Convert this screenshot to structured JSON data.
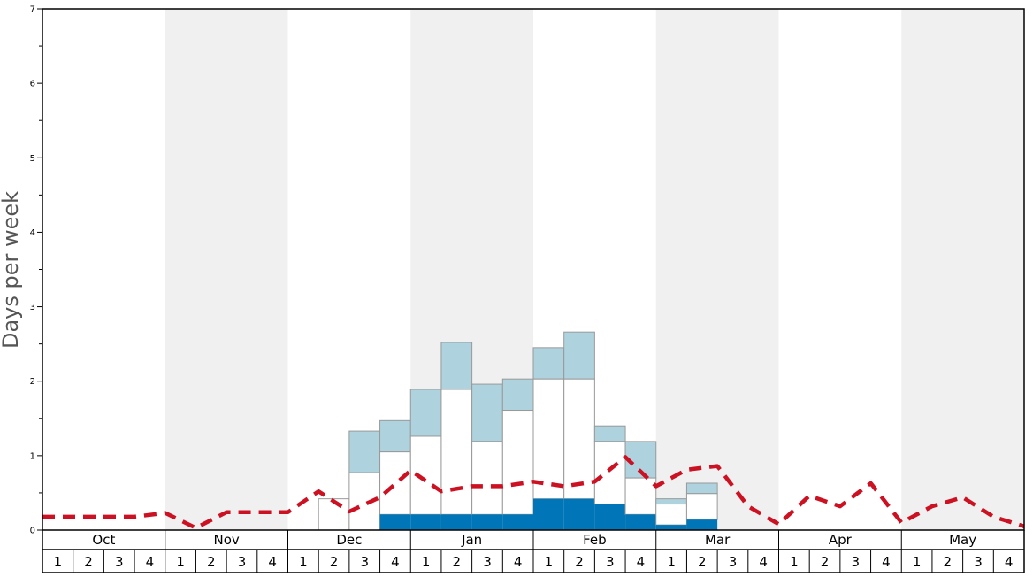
{
  "chart_data": {
    "type": "bar",
    "ylabel": "Days per week",
    "ylim": [
      0,
      7
    ],
    "y_major_ticks": [
      "0",
      "1",
      "2",
      "3",
      "4",
      "5",
      "6",
      "7"
    ],
    "months": [
      "Oct",
      "Nov",
      "Dec",
      "Jan",
      "Feb",
      "Mar",
      "Apr",
      "May"
    ],
    "weeks": [
      "1",
      "2",
      "3",
      "4"
    ],
    "month_shading": [
      "white",
      "grey",
      "white",
      "grey",
      "white",
      "grey",
      "white",
      "grey"
    ],
    "colors": {
      "dark": "#0076b8",
      "light": "#aed3df",
      "mid": "#ffffff",
      "line": "#cc1122",
      "shade": "#f0f0f0",
      "bar_stroke": "#999999"
    },
    "stacked_bars": [
      {
        "month": "Dec",
        "week": 2,
        "dark": 0,
        "white_top": 0.42,
        "total": 0.42
      },
      {
        "month": "Dec",
        "week": 3,
        "dark": 0,
        "white_top": 0.77,
        "total": 1.33
      },
      {
        "month": "Dec",
        "week": 4,
        "dark": 0.21,
        "white_top": 1.05,
        "total": 1.47
      },
      {
        "month": "Jan",
        "week": 1,
        "dark": 0.21,
        "white_top": 1.26,
        "total": 1.89
      },
      {
        "month": "Jan",
        "week": 2,
        "dark": 0.21,
        "white_top": 1.89,
        "total": 2.52
      },
      {
        "month": "Jan",
        "week": 3,
        "dark": 0.21,
        "white_top": 1.19,
        "total": 1.96
      },
      {
        "month": "Jan",
        "week": 4,
        "dark": 0.21,
        "white_top": 1.61,
        "total": 2.03
      },
      {
        "month": "Feb",
        "week": 1,
        "dark": 0.42,
        "white_top": 2.03,
        "total": 2.45
      },
      {
        "month": "Feb",
        "week": 2,
        "dark": 0.42,
        "white_top": 2.03,
        "total": 2.66
      },
      {
        "month": "Feb",
        "week": 3,
        "dark": 0.35,
        "white_top": 1.19,
        "total": 1.4
      },
      {
        "month": "Feb",
        "week": 4,
        "dark": 0.21,
        "white_top": 0.7,
        "total": 1.19
      },
      {
        "month": "Mar",
        "week": 1,
        "dark": 0.07,
        "white_top": 0.35,
        "total": 0.42
      },
      {
        "month": "Mar",
        "week": 2,
        "dark": 0.14,
        "white_top": 0.49,
        "total": 0.63
      }
    ],
    "dashed_line_values": [
      0.18,
      0.18,
      0.18,
      0.18,
      0.23,
      0.03,
      0.24,
      0.24,
      0.24,
      0.52,
      0.25,
      0.44,
      0.8,
      0.52,
      0.59,
      0.59,
      0.65,
      0.59,
      0.65,
      0.98,
      0.59,
      0.81,
      0.86,
      0.32,
      0.08,
      0.46,
      0.32,
      0.63,
      0.1,
      0.32,
      0.44,
      0.18,
      0.05
    ],
    "dashed_line_x_positions": [
      0,
      1,
      2,
      3,
      4,
      5,
      6,
      7,
      8,
      9,
      10,
      11,
      12,
      13,
      14,
      15,
      16,
      17,
      18,
      19,
      20,
      21,
      22,
      23,
      24,
      25,
      26,
      27,
      28,
      29,
      30,
      31,
      32
    ],
    "grid": false,
    "legend": "none"
  }
}
